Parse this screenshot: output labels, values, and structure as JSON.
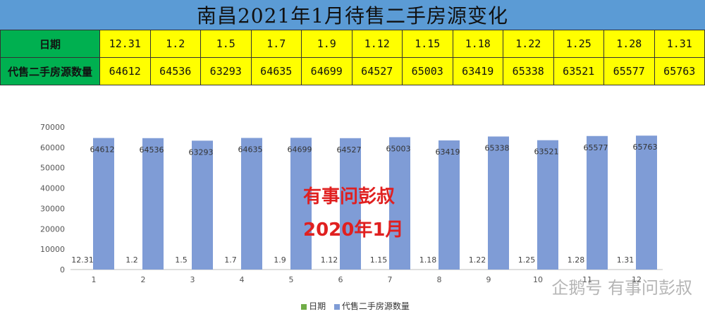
{
  "title": "南昌2021年1月待售二手房源变化",
  "table": {
    "row_labels": [
      "日期",
      "代售二手房源数量"
    ],
    "dates": [
      "12.31",
      "1.2",
      "1.5",
      "1.7",
      "1.9",
      "1.12",
      "1.15",
      "1.18",
      "1.22",
      "1.25",
      "1.28",
      "1.31"
    ],
    "counts": [
      "64612",
      "64536",
      "63293",
      "64635",
      "64699",
      "64527",
      "65003",
      "63419",
      "65338",
      "63521",
      "65577",
      "65763"
    ]
  },
  "chart_data": {
    "type": "bar",
    "categories": [
      "1",
      "2",
      "3",
      "4",
      "5",
      "6",
      "7",
      "8",
      "9",
      "10",
      "11",
      "12"
    ],
    "series": [
      {
        "name": "日期",
        "values": [
          12.31,
          1.2,
          1.5,
          1.7,
          1.9,
          1.12,
          1.15,
          1.18,
          1.22,
          1.25,
          1.28,
          1.31
        ],
        "labels": [
          "12.31",
          "1.2",
          "1.5",
          "1.7",
          "1.9",
          "1.12",
          "1.15",
          "1.18",
          "1.22",
          "1.25",
          "1.28",
          "1.31"
        ],
        "color": "#70ad47"
      },
      {
        "name": "代售二手房源数量",
        "values": [
          64612,
          64536,
          63293,
          64635,
          64699,
          64527,
          65003,
          63419,
          65338,
          63521,
          65577,
          65763
        ],
        "color": "#7f9cd6"
      }
    ],
    "ylim": [
      0,
      70000
    ],
    "yticks": [
      0,
      10000,
      20000,
      30000,
      40000,
      50000,
      60000,
      70000
    ],
    "grid": false,
    "legend": "bottom"
  },
  "watermark": {
    "line1": "有事问彭叔",
    "line2": "2020年1月",
    "brand": "企鹅号 有事问彭叔"
  }
}
